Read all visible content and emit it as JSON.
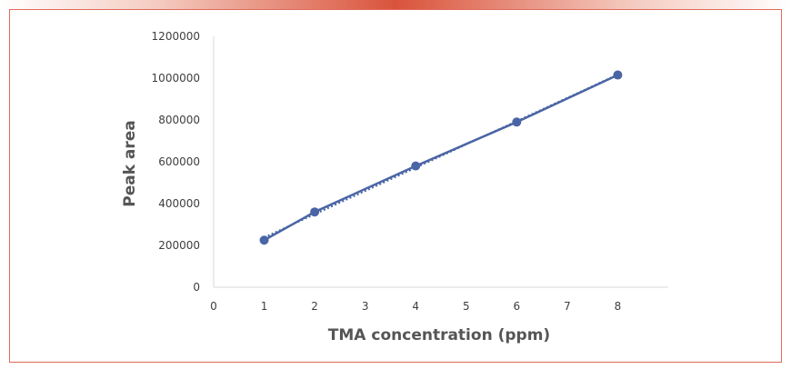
{
  "chart_data": {
    "type": "scatter",
    "title": "",
    "xlabel": "TMA concentration (ppm)",
    "ylabel": "Peak area",
    "xlim": [
      0,
      9
    ],
    "ylim": [
      0,
      1200000
    ],
    "x_ticks": [
      "0",
      "1",
      "2",
      "3",
      "4",
      "5",
      "6",
      "7",
      "8"
    ],
    "y_ticks": [
      "0",
      "200000",
      "400000",
      "600000",
      "800000",
      "1000000",
      "1200000"
    ],
    "series": [
      {
        "x": [
          1,
          2,
          4,
          6,
          8
        ],
        "y": [
          225000,
          360000,
          580000,
          790000,
          1015000
        ],
        "marker": "circle",
        "line": "solid",
        "trendline": "linear-dotted"
      }
    ],
    "grid": false,
    "legend": "none",
    "colors": {
      "series": "#4a65a5",
      "axis": "#d9d9d9",
      "accent": "#d9533b"
    }
  }
}
